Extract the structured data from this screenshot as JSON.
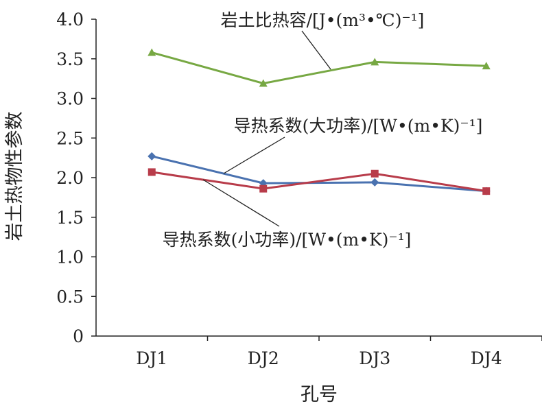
{
  "chart_data": {
    "type": "line",
    "categories": [
      "DJ1",
      "DJ2",
      "DJ3",
      "DJ4"
    ],
    "ylim": [
      0,
      4.0
    ],
    "yticks": [
      "0",
      "0.5",
      "1.0",
      "1.5",
      "2.0",
      "2.5",
      "3.0",
      "3.5",
      "4.0"
    ],
    "xlabel": "孔号",
    "ylabel": "岩土热物性参数",
    "grid": false,
    "series": [
      {
        "name": "岩土比热容/[J•(m³•℃)⁻¹]",
        "color": "#77a843",
        "marker": "triangle",
        "values": [
          3.58,
          3.19,
          3.46,
          3.41
        ]
      },
      {
        "name": "导热系数(大功率)/[W•(m•K)⁻¹]",
        "color": "#4a72b0",
        "marker": "diamond",
        "values": [
          2.27,
          1.93,
          1.94,
          1.83
        ]
      },
      {
        "name": "导热系数(小功率)/[W•(m•K)⁻¹]",
        "color": "#b83c4a",
        "marker": "square",
        "values": [
          2.07,
          1.86,
          2.05,
          1.83
        ]
      }
    ]
  }
}
